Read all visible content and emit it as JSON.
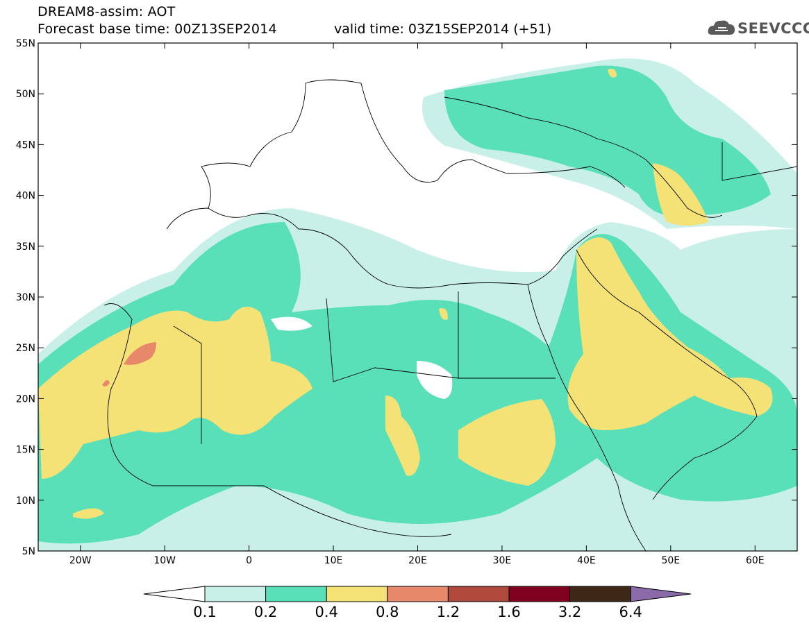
{
  "header": {
    "title": "DREAM8-assim: AOT",
    "base_time": "Forecast base time: 00Z13SEP2014",
    "valid_time": "valid time: 03Z15SEP2014 (+51)",
    "logo_text": "SEEVCCC",
    "logo_icon": "cloud-icon"
  },
  "map": {
    "lat_labels": [
      "55N",
      "50N",
      "45N",
      "40N",
      "35N",
      "30N",
      "25N",
      "20N",
      "15N",
      "10N",
      "5N"
    ],
    "lat_values": [
      55,
      50,
      45,
      40,
      35,
      30,
      25,
      20,
      15,
      10,
      5
    ],
    "lon_labels": [
      "20W",
      "10W",
      "0",
      "10E",
      "20E",
      "30E",
      "40E",
      "50E",
      "60E"
    ],
    "lon_values": [
      -20,
      -10,
      0,
      10,
      20,
      30,
      40,
      50,
      60
    ],
    "extent": {
      "lon_min": -25,
      "lon_max": 65,
      "lat_min": 5,
      "lat_max": 55
    }
  },
  "colorbar": {
    "labels": [
      "0.1",
      "0.2",
      "0.4",
      "0.8",
      "1.2",
      "1.6",
      "3.2",
      "6.4"
    ],
    "colors": [
      "#ffffff",
      "#c8f0e8",
      "#5ae0b8",
      "#f5e276",
      "#e8886a",
      "#b04a3c",
      "#800020",
      "#3c2814",
      "#8a6aa8"
    ]
  }
}
